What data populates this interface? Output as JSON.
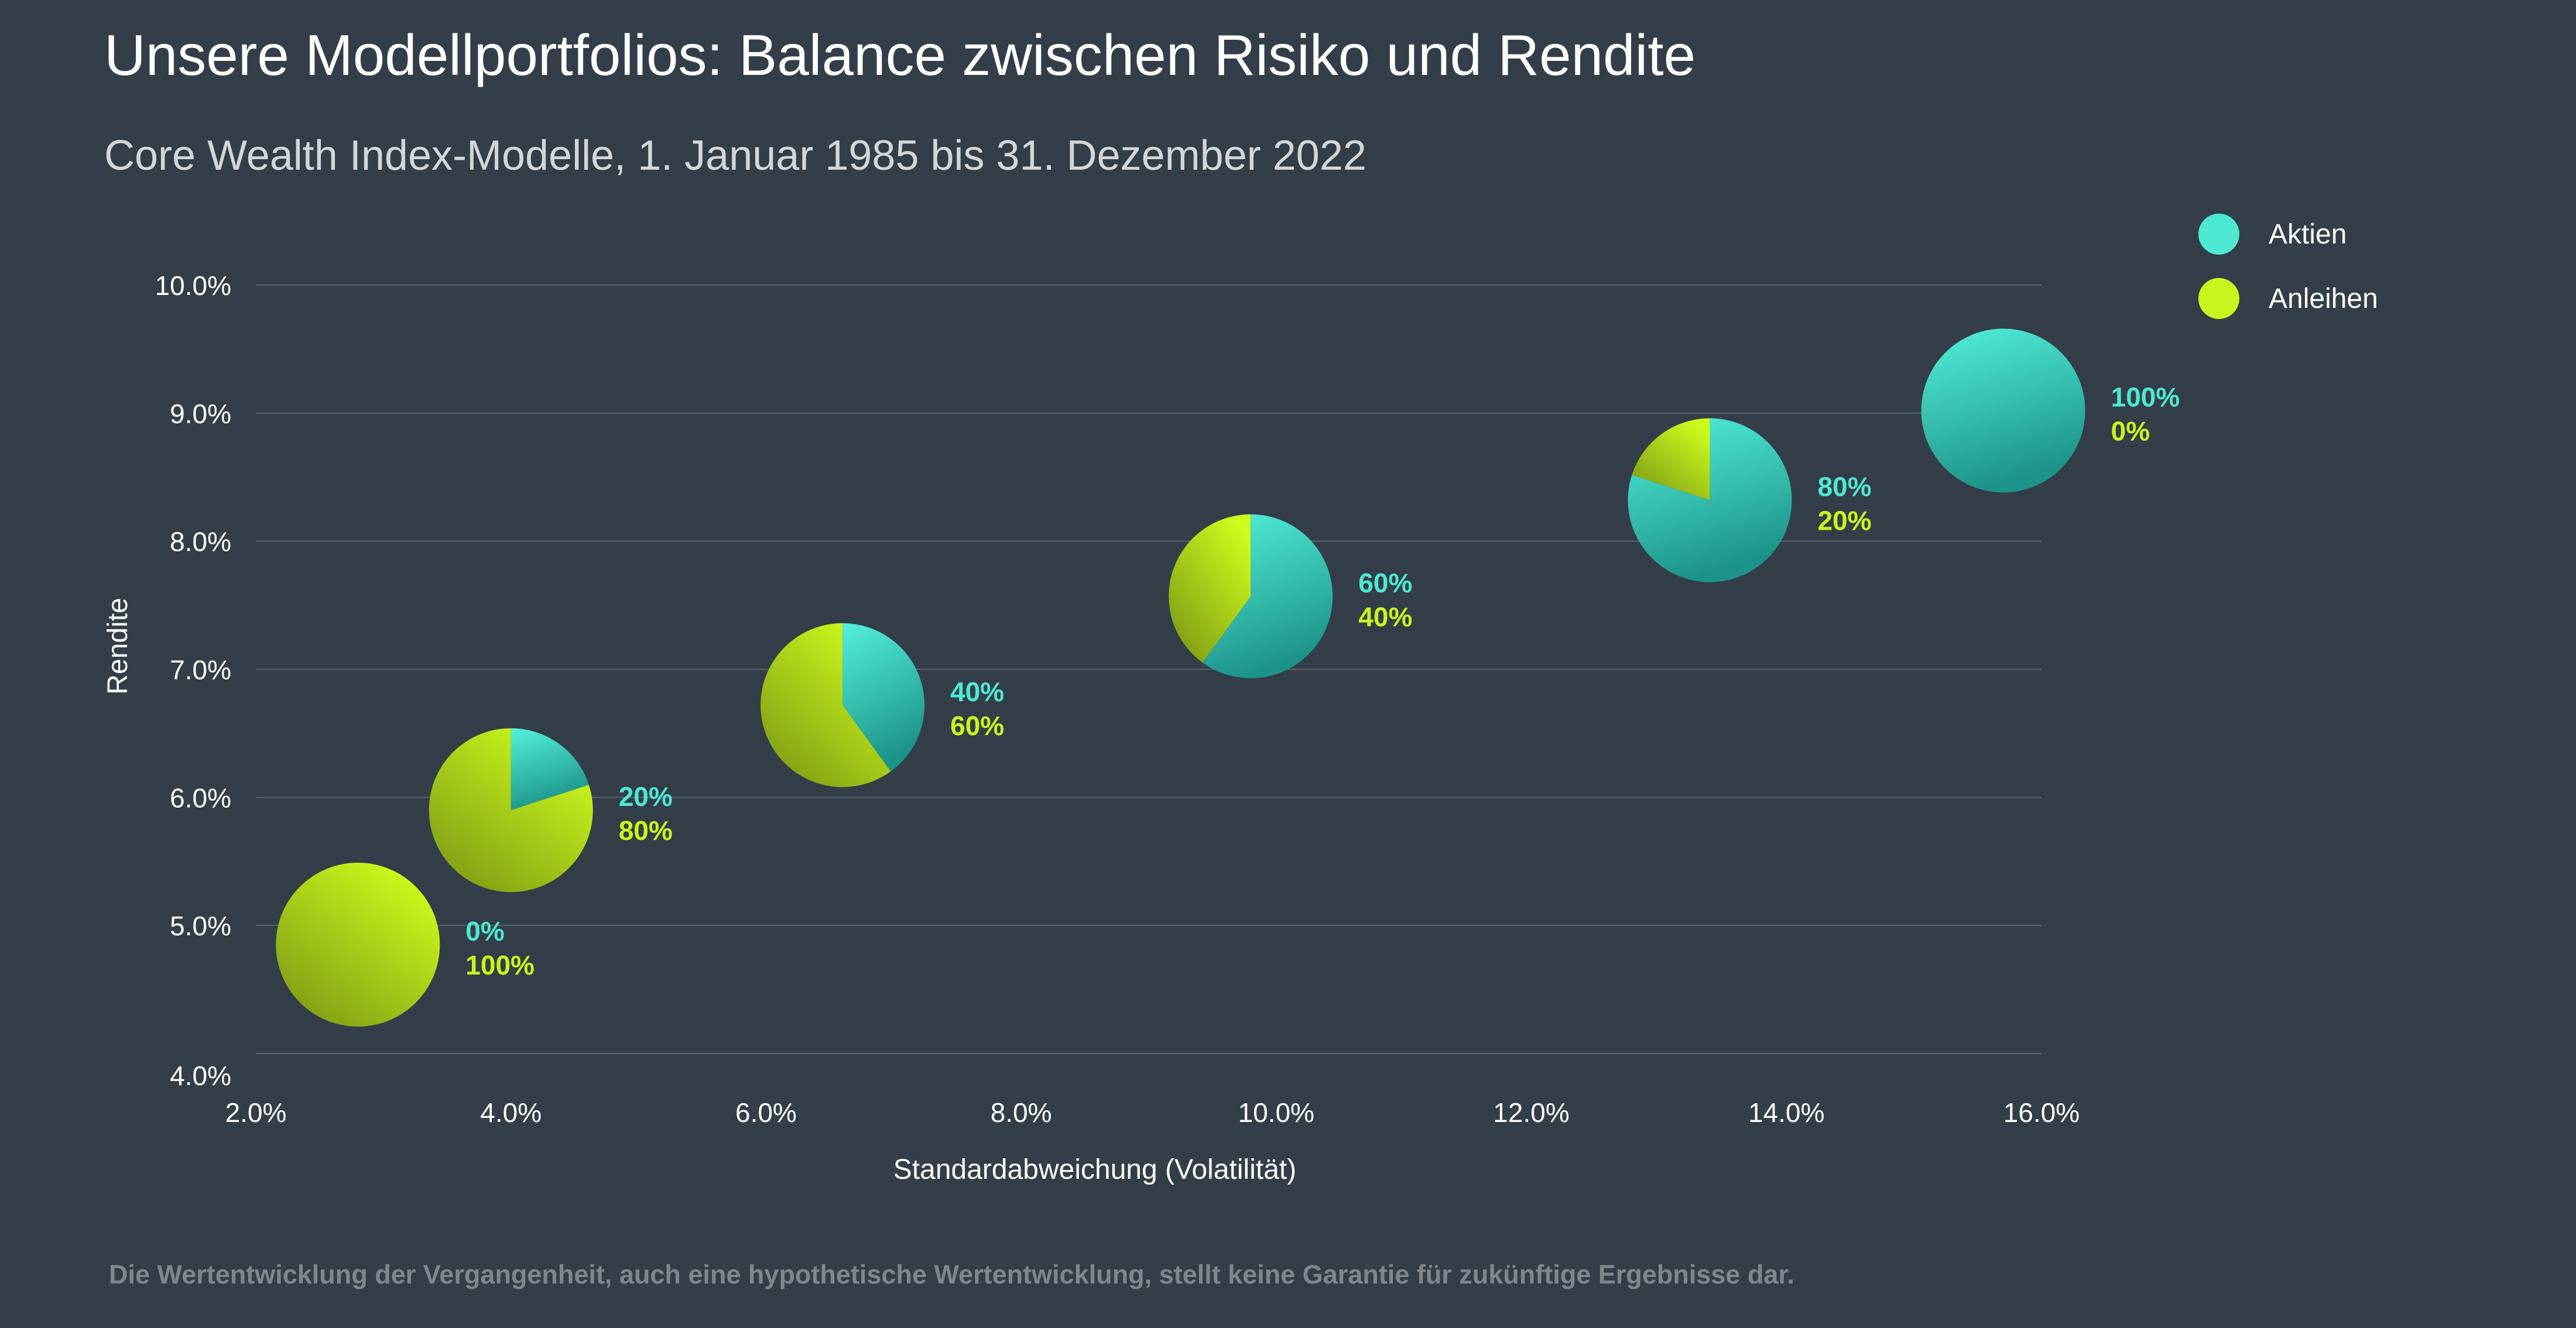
{
  "title": "Unsere Modellportfolios: Balance zwischen Risiko und Rendite",
  "subtitle": "Core Wealth Index-Modelle, 1. Januar 1985 bis 31. Dezember 2022",
  "footnote": "Die Wertentwicklung der Vergangenheit, auch eine hypothetische Wertentwicklung, stellt keine Garantie für zukünftige Ergebnisse dar.",
  "colors": {
    "background": "#343e48",
    "aktien": "#4de8d2",
    "anleihen": "#c8f51d",
    "grid": "#5a646e"
  },
  "legend": [
    {
      "label": "Aktien",
      "color": "#4de8d2"
    },
    {
      "label": "Anleihen",
      "color": "#c8f51d"
    }
  ],
  "chart_data": {
    "type": "scatter",
    "subtype": "pie-markers",
    "xlabel": "Standardabweichung (Volatilität)",
    "ylabel": "Rendite",
    "xlim": [
      2.0,
      16.0
    ],
    "ylim": [
      4.0,
      10.0
    ],
    "xticks": [
      "2.0%",
      "4.0%",
      "6.0%",
      "8.0%",
      "10.0%",
      "12.0%",
      "14.0%",
      "16.0%"
    ],
    "yticks": [
      "4.0%",
      "5.0%",
      "6.0%",
      "7.0%",
      "8.0%",
      "9.0%",
      "10.0%"
    ],
    "grid": true,
    "legend_position": "top-right",
    "series": [
      {
        "name": "Aktien",
        "color": "#4de8d2"
      },
      {
        "name": "Anleihen",
        "color": "#c8f51d"
      }
    ],
    "points": [
      {
        "x": 2.8,
        "y": 4.85,
        "aktien": 0,
        "anleihen": 100,
        "label_aktien": "0%",
        "label_anleihen": "100%"
      },
      {
        "x": 4.0,
        "y": 5.9,
        "aktien": 20,
        "anleihen": 80,
        "label_aktien": "20%",
        "label_anleihen": "80%"
      },
      {
        "x": 6.6,
        "y": 6.72,
        "aktien": 40,
        "anleihen": 60,
        "label_aktien": "40%",
        "label_anleihen": "60%"
      },
      {
        "x": 9.8,
        "y": 7.57,
        "aktien": 60,
        "anleihen": 40,
        "label_aktien": "60%",
        "label_anleihen": "40%"
      },
      {
        "x": 13.4,
        "y": 8.32,
        "aktien": 80,
        "anleihen": 20,
        "label_aktien": "80%",
        "label_anleihen": "20%"
      },
      {
        "x": 15.7,
        "y": 9.02,
        "aktien": 100,
        "anleihen": 0,
        "label_aktien": "100%",
        "label_anleihen": "0%"
      }
    ]
  }
}
